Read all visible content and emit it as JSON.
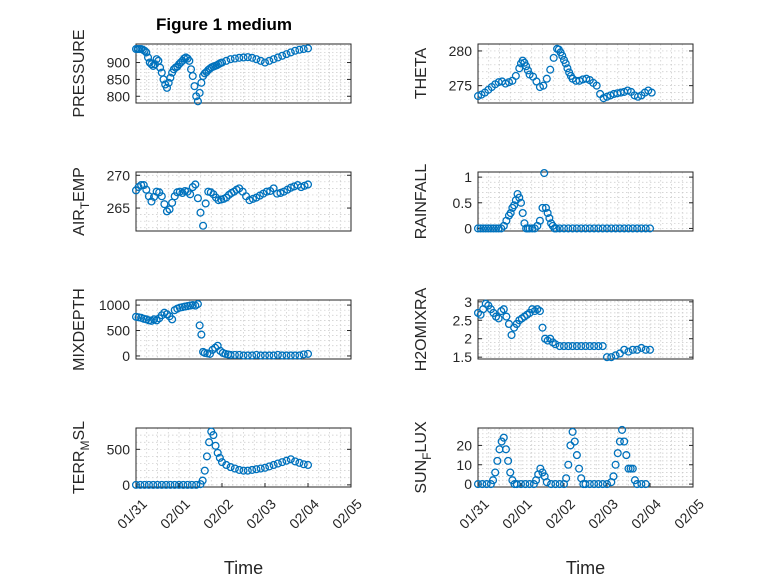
{
  "figure": {
    "title": "Figure 1 medium",
    "marker_color": "#0072BD"
  },
  "chart_data": [
    {
      "type": "scatter",
      "id": "pressure",
      "ylabel": "PRESSURE",
      "ylim": [
        780,
        955
      ],
      "yticks": [
        800,
        850,
        900
      ],
      "ytick_labels": [
        "800",
        "850",
        "900"
      ],
      "xlim": [
        0,
        5
      ],
      "xticks": [],
      "xtick_labels": [],
      "xlabel": "",
      "x": [
        0,
        0.04,
        0.08,
        0.12,
        0.16,
        0.2,
        0.24,
        0.28,
        0.32,
        0.36,
        0.4,
        0.44,
        0.48,
        0.52,
        0.56,
        0.6,
        0.64,
        0.68,
        0.72,
        0.76,
        0.8,
        0.84,
        0.88,
        0.92,
        0.96,
        1.0,
        1.04,
        1.08,
        1.12,
        1.16,
        1.2,
        1.24,
        1.28,
        1.32,
        1.36,
        1.4,
        1.44,
        1.48,
        1.52,
        1.56,
        1.6,
        1.64,
        1.68,
        1.72,
        1.76,
        1.8,
        1.84,
        1.88,
        1.92,
        1.96,
        2.0,
        2.1,
        2.2,
        2.3,
        2.4,
        2.5,
        2.6,
        2.7,
        2.8,
        2.9,
        3.0,
        3.1,
        3.2,
        3.3,
        3.4,
        3.5,
        3.6,
        3.7,
        3.8,
        3.9,
        4.0
      ],
      "y": [
        940,
        940,
        940,
        940,
        938,
        935,
        930,
        915,
        900,
        895,
        890,
        895,
        910,
        905,
        885,
        870,
        850,
        835,
        825,
        840,
        855,
        870,
        880,
        885,
        888,
        895,
        900,
        905,
        912,
        915,
        912,
        905,
        880,
        860,
        830,
        800,
        785,
        810,
        840,
        860,
        868,
        872,
        878,
        882,
        886,
        888,
        890,
        892,
        895,
        898,
        900,
        905,
        910,
        912,
        914,
        915,
        916,
        914,
        910,
        905,
        900,
        905,
        910,
        915,
        920,
        925,
        930,
        935,
        938,
        940,
        942
      ]
    },
    {
      "type": "scatter",
      "id": "theta",
      "ylabel": "THETA",
      "ylim": [
        272.5,
        281
      ],
      "yticks": [
        275,
        280
      ],
      "ytick_labels": [
        "275",
        "280"
      ],
      "xlim": [
        0,
        5
      ],
      "xticks": [],
      "xtick_labels": [],
      "xlabel": "",
      "x": [
        0,
        0.08,
        0.16,
        0.24,
        0.32,
        0.4,
        0.48,
        0.56,
        0.64,
        0.72,
        0.8,
        0.88,
        0.96,
        1.0,
        1.04,
        1.08,
        1.12,
        1.16,
        1.2,
        1.28,
        1.36,
        1.44,
        1.52,
        1.6,
        1.68,
        1.76,
        1.84,
        1.88,
        1.92,
        1.96,
        2.0,
        2.04,
        2.08,
        2.12,
        2.16,
        2.2,
        2.28,
        2.36,
        2.44,
        2.52,
        2.6,
        2.68,
        2.76,
        2.84,
        2.92,
        3.0,
        3.08,
        3.16,
        3.24,
        3.32,
        3.4,
        3.48,
        3.56,
        3.64,
        3.72,
        3.8,
        3.88,
        3.96,
        4.04
      ],
      "y": [
        273.5,
        273.7,
        274,
        274.4,
        274.8,
        275.2,
        275.5,
        275.6,
        275.3,
        275.5,
        275.7,
        276.4,
        277.5,
        278.2,
        278.6,
        278.3,
        277.8,
        277.2,
        276.6,
        276.3,
        275.6,
        274.8,
        275,
        276,
        277.3,
        279,
        280.3,
        280.2,
        279.8,
        279.3,
        278.7,
        278.2,
        277.5,
        276.9,
        276.4,
        276,
        275.7,
        275.7,
        275.9,
        276,
        275.8,
        275.4,
        275,
        273.8,
        273.2,
        273.4,
        273.6,
        273.8,
        273.9,
        274,
        274.1,
        274.3,
        274.1,
        273.6,
        273.4,
        273.6,
        274,
        274.3,
        274
      ]
    },
    {
      "type": "scatter",
      "id": "air_temp",
      "ylabel": "AIR_TEMP",
      "ylim": [
        261.5,
        270.5
      ],
      "yticks": [
        265,
        270
      ],
      "ytick_labels": [
        "265",
        "270"
      ],
      "xlim": [
        0,
        5
      ],
      "xticks": [],
      "xtick_labels": [],
      "xlabel": "",
      "x": [
        0,
        0.06,
        0.12,
        0.18,
        0.24,
        0.3,
        0.36,
        0.42,
        0.48,
        0.54,
        0.6,
        0.66,
        0.72,
        0.78,
        0.84,
        0.9,
        0.96,
        1.02,
        1.08,
        1.14,
        1.2,
        1.26,
        1.32,
        1.38,
        1.44,
        1.5,
        1.56,
        1.62,
        1.68,
        1.74,
        1.8,
        1.86,
        1.92,
        1.98,
        2.04,
        2.1,
        2.16,
        2.22,
        2.28,
        2.34,
        2.4,
        2.48,
        2.56,
        2.64,
        2.72,
        2.8,
        2.88,
        2.96,
        3.04,
        3.12,
        3.2,
        3.28,
        3.36,
        3.44,
        3.52,
        3.6,
        3.68,
        3.76,
        3.84,
        3.92,
        4.0
      ],
      "y": [
        267.7,
        268.2,
        268.5,
        268.5,
        267.8,
        266.8,
        266,
        266.7,
        267.5,
        267.4,
        266.8,
        265.6,
        264.5,
        264.8,
        265.8,
        266.8,
        267.4,
        267.5,
        267.3,
        267.6,
        267.5,
        267.1,
        268.2,
        268.6,
        266.5,
        264.3,
        262.3,
        265.7,
        267.5,
        267.4,
        267.1,
        266.6,
        266.2,
        266.3,
        266.4,
        266.6,
        267,
        267.3,
        267.5,
        267.8,
        268,
        267.5,
        266.8,
        266.2,
        266.4,
        266.6,
        266.9,
        267.2,
        267.5,
        267.6,
        268,
        267.2,
        267.3,
        267.5,
        267.8,
        268.1,
        268.3,
        268.5,
        268.2,
        268.4,
        268.6
      ]
    },
    {
      "type": "scatter",
      "id": "rainfall",
      "ylabel": "RAINFALL",
      "ylim": [
        -0.05,
        1.1
      ],
      "yticks": [
        0,
        0.5,
        1
      ],
      "ytick_labels": [
        "0",
        "0.5",
        "1"
      ],
      "xlim": [
        0,
        5
      ],
      "xticks": [],
      "xtick_labels": [],
      "xlabel": "",
      "x": [
        0,
        0.06,
        0.12,
        0.18,
        0.24,
        0.3,
        0.36,
        0.42,
        0.48,
        0.54,
        0.6,
        0.66,
        0.72,
        0.76,
        0.8,
        0.84,
        0.88,
        0.92,
        0.96,
        1.0,
        1.04,
        1.08,
        1.12,
        1.16,
        1.2,
        1.26,
        1.32,
        1.38,
        1.44,
        1.5,
        1.54,
        1.58,
        1.62,
        1.66,
        1.7,
        1.74,
        1.78,
        1.82,
        1.9,
        2.0,
        2.1,
        2.2,
        2.3,
        2.4,
        2.5,
        2.6,
        2.7,
        2.8,
        2.9,
        3.0,
        3.1,
        3.2,
        3.3,
        3.4,
        3.5,
        3.6,
        3.7,
        3.8,
        3.9,
        4.0
      ],
      "y": [
        0,
        0,
        0,
        0,
        0,
        0,
        0,
        0,
        0,
        0,
        0.05,
        0.15,
        0.25,
        0.3,
        0.4,
        0.45,
        0.55,
        0.67,
        0.6,
        0.5,
        0.3,
        0.1,
        0,
        0,
        0,
        0,
        0,
        0.05,
        0.15,
        0.4,
        1.08,
        0.4,
        0.3,
        0.2,
        0.1,
        0.05,
        0,
        0,
        0,
        0,
        0,
        0,
        0,
        0,
        0,
        0,
        0,
        0,
        0,
        0,
        0,
        0,
        0,
        0,
        0,
        0,
        0,
        0,
        0,
        0
      ]
    },
    {
      "type": "scatter",
      "id": "mixdepth",
      "ylabel": "MIXDEPTH",
      "ylim": [
        -60,
        1100
      ],
      "yticks": [
        0,
        500,
        1000
      ],
      "ytick_labels": [
        "0",
        "500",
        "1000"
      ],
      "xlim": [
        0,
        5
      ],
      "xticks": [],
      "xtick_labels": [],
      "xlabel": "",
      "x": [
        0,
        0.06,
        0.12,
        0.18,
        0.24,
        0.3,
        0.36,
        0.42,
        0.48,
        0.54,
        0.6,
        0.66,
        0.72,
        0.78,
        0.84,
        0.9,
        0.96,
        1.02,
        1.08,
        1.14,
        1.2,
        1.26,
        1.32,
        1.38,
        1.44,
        1.48,
        1.52,
        1.56,
        1.6,
        1.66,
        1.72,
        1.78,
        1.84,
        1.9,
        1.96,
        2.02,
        2.08,
        2.14,
        2.2,
        2.3,
        2.4,
        2.5,
        2.6,
        2.7,
        2.8,
        2.9,
        3.0,
        3.1,
        3.2,
        3.3,
        3.4,
        3.5,
        3.6,
        3.7,
        3.8,
        3.9,
        4.0
      ],
      "y": [
        770,
        760,
        750,
        730,
        720,
        700,
        690,
        720,
        700,
        740,
        800,
        850,
        820,
        780,
        720,
        900,
        930,
        950,
        960,
        970,
        980,
        990,
        1000,
        990,
        1020,
        600,
        420,
        80,
        60,
        50,
        40,
        120,
        160,
        200,
        100,
        60,
        40,
        30,
        20,
        20,
        20,
        10,
        10,
        10,
        20,
        10,
        10,
        10,
        10,
        20,
        10,
        10,
        10,
        10,
        10,
        30,
        40
      ]
    },
    {
      "type": "scatter",
      "id": "h2omixra",
      "ylabel": "H2OMIXRA",
      "ylim": [
        1.45,
        3.05
      ],
      "yticks": [
        1.5,
        2,
        2.5,
        3
      ],
      "ytick_labels": [
        "1.5",
        "2",
        "2.5",
        "3"
      ],
      "xlim": [
        0,
        5
      ],
      "xticks": [],
      "xtick_labels": [],
      "xlabel": "",
      "x": [
        0,
        0.06,
        0.12,
        0.18,
        0.24,
        0.3,
        0.36,
        0.42,
        0.48,
        0.54,
        0.6,
        0.66,
        0.72,
        0.78,
        0.84,
        0.9,
        0.96,
        1.02,
        1.08,
        1.14,
        1.2,
        1.26,
        1.32,
        1.38,
        1.44,
        1.5,
        1.56,
        1.62,
        1.68,
        1.74,
        1.8,
        1.9,
        2.0,
        2.1,
        2.2,
        2.3,
        2.4,
        2.5,
        2.6,
        2.7,
        2.8,
        2.9,
        3.0,
        3.1,
        3.2,
        3.3,
        3.4,
        3.5,
        3.6,
        3.7,
        3.8,
        3.9,
        4.0
      ],
      "y": [
        2.7,
        2.65,
        2.8,
        2.95,
        2.9,
        2.8,
        2.7,
        2.6,
        2.55,
        2.75,
        2.8,
        2.6,
        2.4,
        2.1,
        2.3,
        2.4,
        2.5,
        2.55,
        2.6,
        2.65,
        2.7,
        2.8,
        2.75,
        2.8,
        2.75,
        2.3,
        2.0,
        1.95,
        2.0,
        1.9,
        1.85,
        1.8,
        1.8,
        1.8,
        1.8,
        1.8,
        1.8,
        1.8,
        1.8,
        1.8,
        1.8,
        1.8,
        1.5,
        1.5,
        1.55,
        1.6,
        1.7,
        1.65,
        1.7,
        1.7,
        1.75,
        1.7,
        1.7
      ]
    },
    {
      "type": "scatter",
      "id": "terr_msl",
      "ylabel": "TERR_MSL",
      "ylim": [
        -30,
        800
      ],
      "yticks": [
        0,
        500
      ],
      "ytick_labels": [
        "0",
        "500"
      ],
      "xlim": [
        0,
        5
      ],
      "xticks": [
        0,
        1,
        2,
        3,
        4,
        5
      ],
      "xtick_labels": [
        "01/31",
        "02/01",
        "02/02",
        "02/03",
        "02/04",
        "02/05"
      ],
      "xlabel": "Time",
      "x": [
        0,
        0.1,
        0.2,
        0.3,
        0.4,
        0.5,
        0.6,
        0.7,
        0.8,
        0.9,
        1.0,
        1.1,
        1.2,
        1.3,
        1.4,
        1.5,
        1.55,
        1.6,
        1.65,
        1.7,
        1.75,
        1.8,
        1.85,
        1.9,
        1.95,
        2.0,
        2.1,
        2.2,
        2.3,
        2.4,
        2.5,
        2.6,
        2.7,
        2.8,
        2.9,
        3.0,
        3.1,
        3.2,
        3.3,
        3.4,
        3.5,
        3.6,
        3.7,
        3.8,
        3.9,
        4.0
      ],
      "y": [
        0,
        0,
        0,
        0,
        0,
        0,
        0,
        0,
        0,
        0,
        0,
        0,
        0,
        0,
        0,
        10,
        60,
        200,
        400,
        600,
        750,
        700,
        550,
        450,
        380,
        320,
        280,
        250,
        230,
        210,
        200,
        200,
        210,
        220,
        230,
        240,
        260,
        280,
        300,
        320,
        340,
        360,
        330,
        310,
        290,
        280
      ]
    },
    {
      "type": "scatter",
      "id": "sun_flux",
      "ylabel": "SUN_FLUX",
      "ylim": [
        -1.5,
        29
      ],
      "yticks": [
        0,
        10,
        20
      ],
      "ytick_labels": [
        "0",
        "10",
        "20"
      ],
      "xlim": [
        0,
        5
      ],
      "xticks": [
        0,
        1,
        2,
        3,
        4,
        5
      ],
      "xtick_labels": [
        "01/31",
        "02/01",
        "02/02",
        "02/03",
        "02/04",
        "02/05"
      ],
      "xlabel": "Time",
      "x": [
        0,
        0.1,
        0.2,
        0.3,
        0.35,
        0.4,
        0.45,
        0.5,
        0.55,
        0.6,
        0.65,
        0.7,
        0.75,
        0.8,
        0.85,
        0.9,
        1.0,
        1.1,
        1.2,
        1.3,
        1.35,
        1.4,
        1.45,
        1.5,
        1.55,
        1.6,
        1.7,
        1.8,
        1.9,
        2.0,
        2.05,
        2.1,
        2.15,
        2.2,
        2.25,
        2.3,
        2.35,
        2.4,
        2.45,
        2.5,
        2.6,
        2.7,
        2.8,
        2.9,
        3.0,
        3.1,
        3.15,
        3.2,
        3.25,
        3.3,
        3.35,
        3.4,
        3.45,
        3.5,
        3.55,
        3.6,
        3.65,
        3.7,
        3.8,
        3.9
      ],
      "y": [
        0,
        0,
        0,
        0,
        2,
        6,
        12,
        18,
        22,
        24,
        18,
        12,
        6,
        2,
        0,
        0,
        0,
        0,
        0,
        0,
        2,
        5,
        8,
        6,
        4,
        1,
        0,
        0,
        0,
        0,
        3,
        10,
        20,
        27,
        22,
        15,
        8,
        3,
        0,
        0,
        0,
        0,
        0,
        0,
        0,
        1,
        4,
        10,
        16,
        22,
        28,
        22,
        15,
        8,
        8,
        8,
        2,
        0,
        0,
        0
      ]
    }
  ]
}
